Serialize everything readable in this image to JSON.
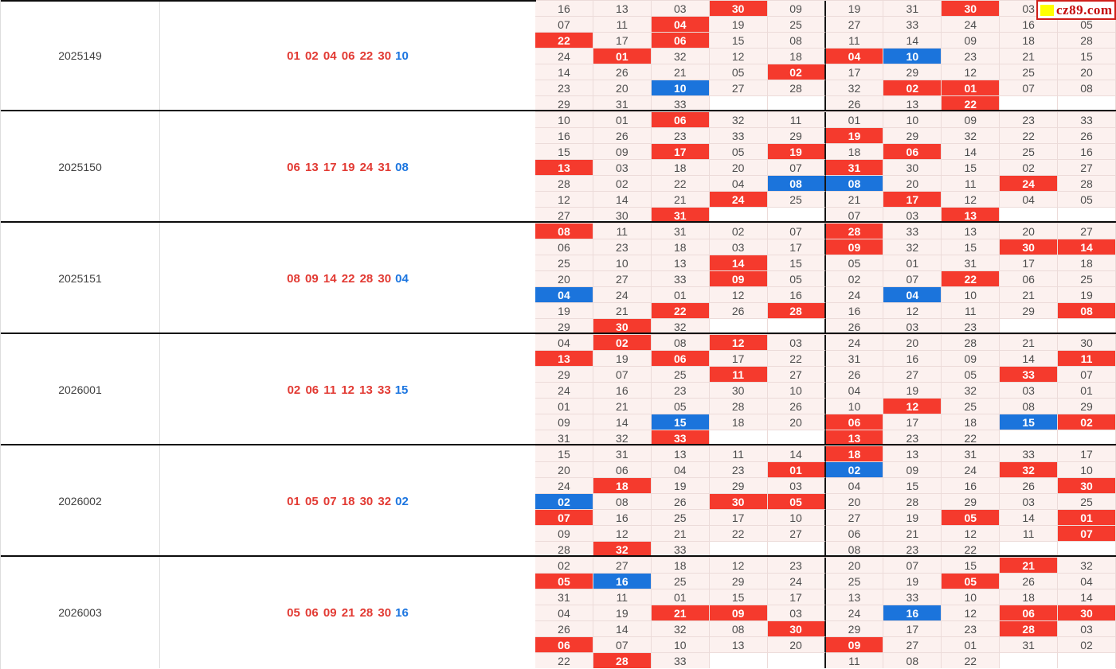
{
  "logo": {
    "text": "cz89.com",
    "square_color": "#ffff00",
    "border_color": "#cf1f1a",
    "text_color": "#c40a0a"
  },
  "colors": {
    "red_hit_cell": "#f53a2d",
    "blue_hit_cell": "#1b74dc",
    "cell_background": "#fcf1ef",
    "cell_border": "#ecdbd9",
    "red_number_text": "#e23a33",
    "blue_number_text": "#1d76e0",
    "block_divider": "#0c0c0c"
  },
  "legend_note": "grid cells use value:r = red-ball hit, value:b = blue-ball hit, empty string = blank cell; each block grid is 7 rows x 10 columns (two 5-column halves each containing numbers 01-33)",
  "blocks": [
    {
      "period": "2025149",
      "reds": "01 02 04 06 22 30",
      "blue": "10",
      "grid": [
        [
          "16",
          "13",
          "03",
          "30:r",
          "09",
          "19",
          "31",
          "30:r",
          "03",
          "06:r"
        ],
        [
          "07",
          "11",
          "04:r",
          "19",
          "25",
          "27",
          "33",
          "24",
          "16",
          "05"
        ],
        [
          "22:r",
          "17",
          "06:r",
          "15",
          "08",
          "11",
          "14",
          "09",
          "18",
          "28"
        ],
        [
          "24",
          "01:r",
          "32",
          "12",
          "18",
          "04:r",
          "10:b",
          "23",
          "21",
          "15"
        ],
        [
          "14",
          "26",
          "21",
          "05",
          "02:r",
          "17",
          "29",
          "12",
          "25",
          "20"
        ],
        [
          "23",
          "20",
          "10:b",
          "27",
          "28",
          "32",
          "02:r",
          "01:r",
          "07",
          "08"
        ],
        [
          "29",
          "31",
          "33",
          "",
          "",
          "26",
          "13",
          "22:r",
          "",
          ""
        ]
      ]
    },
    {
      "period": "2025150",
      "reds": "06 13 17 19 24 31",
      "blue": "08",
      "grid": [
        [
          "10",
          "01",
          "06:r",
          "32",
          "11",
          "01",
          "10",
          "09",
          "23",
          "33"
        ],
        [
          "16",
          "26",
          "23",
          "33",
          "29",
          "19:r",
          "29",
          "32",
          "22",
          "26"
        ],
        [
          "15",
          "09",
          "17:r",
          "05",
          "19:r",
          "18",
          "06:r",
          "14",
          "25",
          "16"
        ],
        [
          "13:r",
          "03",
          "18",
          "20",
          "07",
          "31:r",
          "30",
          "15",
          "02",
          "27"
        ],
        [
          "28",
          "02",
          "22",
          "04",
          "08:b",
          "08:b",
          "20",
          "11",
          "24:r",
          "28"
        ],
        [
          "12",
          "14",
          "21",
          "24:r",
          "25",
          "21",
          "17:r",
          "12",
          "04",
          "05"
        ],
        [
          "27",
          "30",
          "31:r",
          "",
          "",
          "07",
          "03",
          "13:r",
          "",
          ""
        ]
      ]
    },
    {
      "period": "2025151",
      "reds": "08 09 14 22 28 30",
      "blue": "04",
      "grid": [
        [
          "08:r",
          "11",
          "31",
          "02",
          "07",
          "28:r",
          "33",
          "13",
          "20",
          "27"
        ],
        [
          "06",
          "23",
          "18",
          "03",
          "17",
          "09:r",
          "32",
          "15",
          "30:r",
          "14:r"
        ],
        [
          "25",
          "10",
          "13",
          "14:r",
          "15",
          "05",
          "01",
          "31",
          "17",
          "18"
        ],
        [
          "20",
          "27",
          "33",
          "09:r",
          "05",
          "02",
          "07",
          "22:r",
          "06",
          "25"
        ],
        [
          "04:b",
          "24",
          "01",
          "12",
          "16",
          "24",
          "04:b",
          "10",
          "21",
          "19"
        ],
        [
          "19",
          "21",
          "22:r",
          "26",
          "28:r",
          "16",
          "12",
          "11",
          "29",
          "08:r"
        ],
        [
          "29",
          "30:r",
          "32",
          "",
          "",
          "26",
          "03",
          "23",
          "",
          ""
        ]
      ]
    },
    {
      "period": "2026001",
      "reds": "02 06 11 12 13 33",
      "blue": "15",
      "grid": [
        [
          "04",
          "02:r",
          "08",
          "12:r",
          "03",
          "24",
          "20",
          "28",
          "21",
          "30"
        ],
        [
          "13:r",
          "19",
          "06:r",
          "17",
          "22",
          "31",
          "16",
          "09",
          "14",
          "11:r"
        ],
        [
          "29",
          "07",
          "25",
          "11:r",
          "27",
          "26",
          "27",
          "05",
          "33:r",
          "07"
        ],
        [
          "24",
          "16",
          "23",
          "30",
          "10",
          "04",
          "19",
          "32",
          "03",
          "01"
        ],
        [
          "01",
          "21",
          "05",
          "28",
          "26",
          "10",
          "12:r",
          "25",
          "08",
          "29"
        ],
        [
          "09",
          "14",
          "15:b",
          "18",
          "20",
          "06:r",
          "17",
          "18",
          "15:b",
          "02:r"
        ],
        [
          "31",
          "32",
          "33:r",
          "",
          "",
          "13:r",
          "23",
          "22",
          "",
          ""
        ]
      ]
    },
    {
      "period": "2026002",
      "reds": "01 05 07 18 30 32",
      "blue": "02",
      "grid": [
        [
          "15",
          "31",
          "13",
          "11",
          "14",
          "18:r",
          "13",
          "31",
          "33",
          "17"
        ],
        [
          "20",
          "06",
          "04",
          "23",
          "01:r",
          "02:b",
          "09",
          "24",
          "32:r",
          "10"
        ],
        [
          "24",
          "18:r",
          "19",
          "29",
          "03",
          "04",
          "15",
          "16",
          "26",
          "30:r"
        ],
        [
          "02:b",
          "08",
          "26",
          "30:r",
          "05:r",
          "20",
          "28",
          "29",
          "03",
          "25"
        ],
        [
          "07:r",
          "16",
          "25",
          "17",
          "10",
          "27",
          "19",
          "05:r",
          "14",
          "01:r"
        ],
        [
          "09",
          "12",
          "21",
          "22",
          "27",
          "06",
          "21",
          "12",
          "11",
          "07:r"
        ],
        [
          "28",
          "32:r",
          "33",
          "",
          "",
          "08",
          "23",
          "22",
          "",
          ""
        ]
      ]
    },
    {
      "period": "2026003",
      "reds": "05 06 09 21 28 30",
      "blue": "16",
      "grid": [
        [
          "02",
          "27",
          "18",
          "12",
          "23",
          "20",
          "07",
          "15",
          "21:r",
          "32"
        ],
        [
          "05:r",
          "16:b",
          "25",
          "29",
          "24",
          "25",
          "19",
          "05:r",
          "26",
          "04"
        ],
        [
          "31",
          "11",
          "01",
          "15",
          "17",
          "13",
          "33",
          "10",
          "18",
          "14"
        ],
        [
          "04",
          "19",
          "21:r",
          "09:r",
          "03",
          "24",
          "16:b",
          "12",
          "06:r",
          "30:r"
        ],
        [
          "26",
          "14",
          "32",
          "08",
          "30:r",
          "29",
          "17",
          "23",
          "28:r",
          "03"
        ],
        [
          "06:r",
          "07",
          "10",
          "13",
          "20",
          "09:r",
          "27",
          "01",
          "31",
          "02"
        ],
        [
          "22",
          "28:r",
          "33",
          "",
          "",
          "11",
          "08",
          "22",
          "",
          ""
        ]
      ]
    }
  ]
}
